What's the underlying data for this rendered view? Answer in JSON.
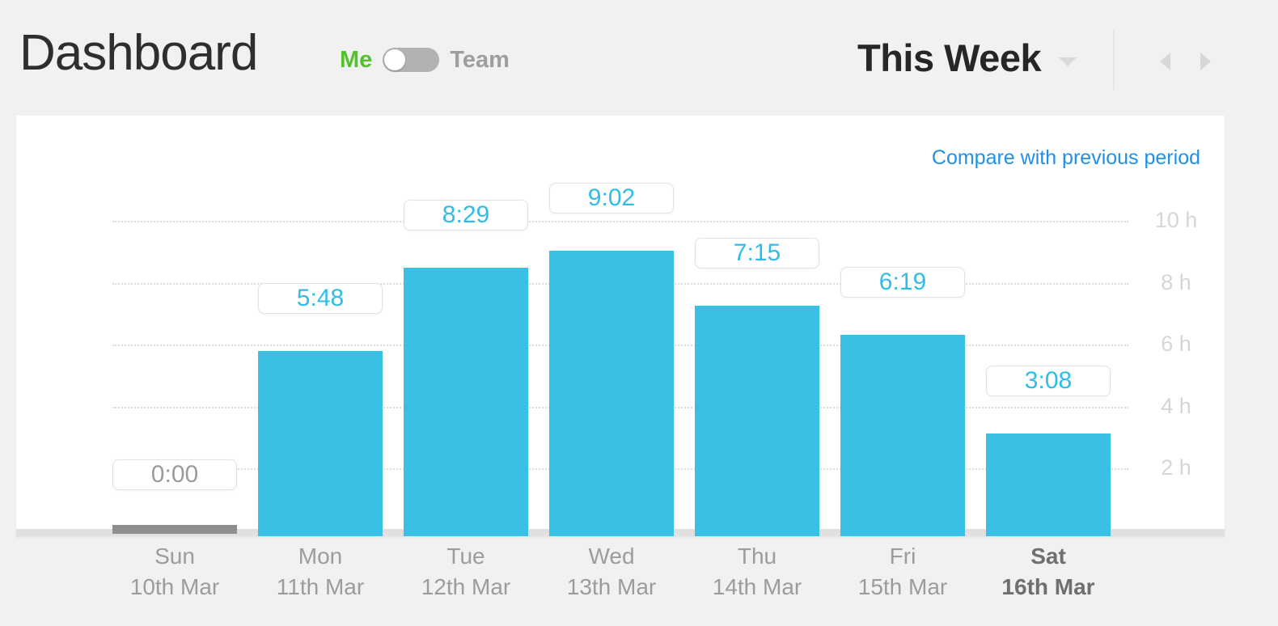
{
  "header": {
    "title": "Dashboard",
    "toggle": {
      "left_label": "Me",
      "right_label": "Team",
      "selected": "Me"
    },
    "period": {
      "label": "This Week"
    },
    "icons": {
      "period_caret": "chevron-down",
      "prev": "chevron-left",
      "next": "chevron-right"
    }
  },
  "chart": {
    "compare_link": "Compare with previous period"
  },
  "chart_data": {
    "type": "bar",
    "categories": [
      "Sun",
      "Mon",
      "Tue",
      "Wed",
      "Thu",
      "Fri",
      "Sat"
    ],
    "category_dates": [
      "10th Mar",
      "11th Mar",
      "12th Mar",
      "13th Mar",
      "14th Mar",
      "15th Mar",
      "16th Mar"
    ],
    "values_hhmm": [
      "0:00",
      "5:48",
      "8:29",
      "9:02",
      "7:15",
      "6:19",
      "3:08"
    ],
    "values_hours": [
      0,
      5.8,
      8.4833,
      9.0333,
      7.25,
      6.3167,
      3.1333
    ],
    "ylabels": [
      "10 h",
      "8 h",
      "6 h",
      "4 h",
      "2 h"
    ],
    "ytick_hours": [
      10,
      8,
      6,
      4,
      2
    ],
    "ylim": [
      0,
      10
    ],
    "grid": "dotted-horizontal",
    "yaxis_position": "right",
    "highlight_category": "Sat",
    "colors": {
      "bar": "#39c0e5",
      "zero_bar": "#8e8e8e",
      "value_text": "#31bce8",
      "zero_value_text": "#9b9b9b",
      "axis_text": "#9c9c9c",
      "highlight_text": "#6f6f6f",
      "ylabel_text": "#d6d6d6",
      "link": "#2090ea",
      "accent_green": "#55c22d"
    }
  }
}
